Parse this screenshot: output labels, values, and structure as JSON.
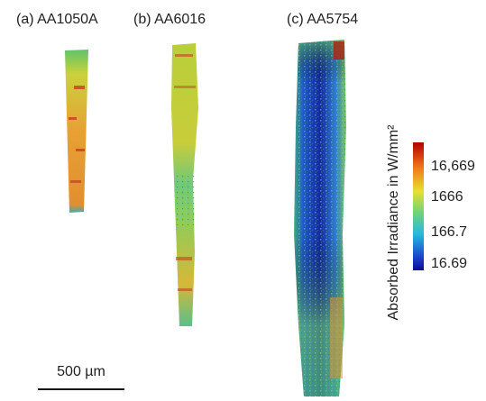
{
  "panels": [
    {
      "label": "(a) AA1050A"
    },
    {
      "label": "(b) AA6016"
    },
    {
      "label": "(c) AA5754"
    }
  ],
  "colorbar": {
    "title": "Absorbed Irradiance in W/mm²",
    "ticks": [
      "16,669",
      "1666",
      "166.7",
      "16.69"
    ]
  },
  "scale_bar": {
    "label": "500 µm"
  }
}
